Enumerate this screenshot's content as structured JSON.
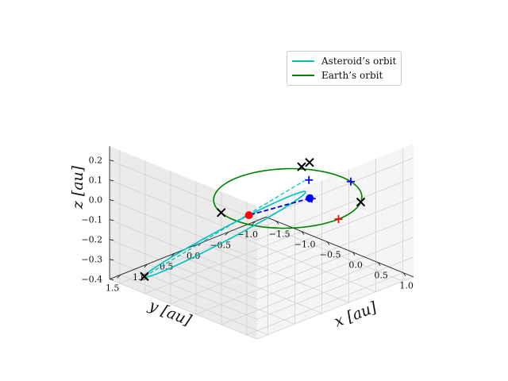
{
  "chart_data": {
    "type": "line3d",
    "xlabel": "x [au]",
    "ylabel": "y [au]",
    "zlabel": "z [au]",
    "x_ticks": [
      "−1.5",
      "−1.0",
      "−0.5",
      "0.0",
      "0.5",
      "1.0"
    ],
    "y_ticks": [
      "1.5",
      "1.0",
      "0.5",
      "0.0",
      "−0.5",
      "−1.0"
    ],
    "z_ticks": [
      "0.2",
      "0.1",
      "0.0",
      "−0.1",
      "−0.2",
      "−0.3",
      "−0.4"
    ],
    "xlim": [
      -1.7,
      1.2
    ],
    "ylim": [
      -1.2,
      1.7
    ],
    "zlim": [
      -0.4,
      0.27
    ],
    "grid": true,
    "legend_position": "top-right",
    "series": [
      {
        "name": "Asteroid’s orbit",
        "color": "#00bfbf"
      },
      {
        "name": "Earth’s orbit",
        "color": "#008000"
      }
    ],
    "earth_orbit_radius": 1.0,
    "asteroid_orbit": {
      "perihelion": [
        0.65,
        0.28,
        0.13
      ],
      "aphelion": [
        -1.28,
        1.45,
        -0.37
      ],
      "inclination_width": 0.12
    },
    "markers": {
      "black_x": [
        [
          -1.28,
          1.45,
          -0.37
        ],
        [
          0.72,
          0.42,
          0.28
        ],
        [
          0.79,
          0.34,
          0.3
        ],
        [
          -0.3,
          0.95,
          0.0
        ],
        [
          0.8,
          -0.6,
          0.0
        ]
      ],
      "blue_plus": [
        [
          0.63,
          0.2,
          0.18
        ],
        [
          0.58,
          0.1,
          0.07
        ],
        [
          0.2,
          -0.98,
          0.0
        ]
      ],
      "red_plus": [
        [
          1.0,
          0.0,
          0.0
        ]
      ],
      "blue_dot": [
        [
          0.55,
          0.11,
          0.07
        ]
      ],
      "red_dot": [
        [
          -0.55,
          0.2,
          -0.12
        ]
      ],
      "dashed_segment": [
        [
          0.55,
          0.11,
          0.07
        ],
        [
          -0.55,
          0.2,
          -0.12
        ]
      ],
      "dashed_asteroid_chord": [
        [
          -1.28,
          1.45,
          -0.37
        ],
        [
          0.7,
          0.35,
          0.2
        ]
      ]
    }
  }
}
